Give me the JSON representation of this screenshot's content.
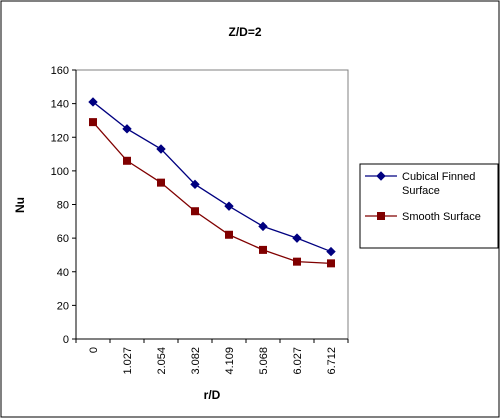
{
  "chart_data": {
    "type": "line",
    "title": "Z/D=2",
    "xlabel": "r/D",
    "ylabel": "Nu",
    "categories": [
      "0",
      "1.027",
      "2.054",
      "3.082",
      "4.109",
      "5.068",
      "6.027",
      "6.712"
    ],
    "ylim": [
      0,
      160
    ],
    "yticks": [
      0,
      20,
      40,
      60,
      80,
      100,
      120,
      140,
      160
    ],
    "grid": false,
    "legend_position": "right",
    "series": [
      {
        "name_lines": [
          "Cubical Finned",
          "Surface"
        ],
        "color": "#000080",
        "marker": "diamond",
        "values": [
          141,
          125,
          113,
          92,
          79,
          67,
          60,
          52
        ]
      },
      {
        "name_lines": [
          "Smooth Surface"
        ],
        "color": "#800000",
        "marker": "square",
        "values": [
          129,
          106,
          93,
          76,
          62,
          53,
          46,
          45
        ]
      }
    ]
  }
}
